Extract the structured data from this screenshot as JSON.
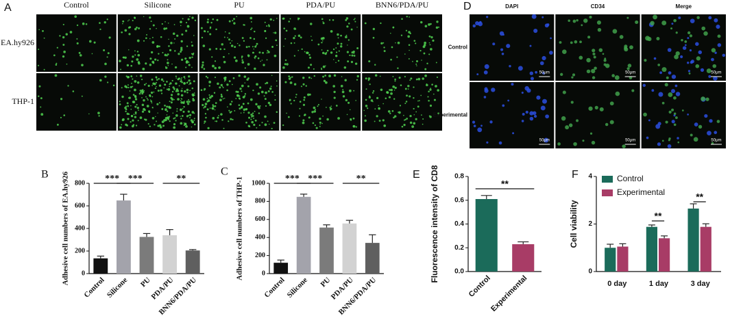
{
  "figure": {
    "panel_a": {
      "label": "A",
      "columns": [
        "Control",
        "Silicone",
        "PU",
        "PDA/PU",
        "BNN6/PDA/PU"
      ],
      "rows": [
        "EA.hy926",
        "THP-1"
      ]
    },
    "panel_d": {
      "label": "D",
      "columns": [
        "DAPI",
        "CD34",
        "Merge"
      ],
      "rows": [
        "Control",
        "Experimental"
      ],
      "scale_bar": "50μm"
    }
  },
  "chart_data": [
    {
      "type": "bar",
      "panel_label": "B",
      "ylabel": "Adhesive cell numbers of EA.hy926",
      "categories": [
        "Control",
        "Silicone",
        "PU",
        "PDA/PU",
        "BNN6/PDA/PU"
      ],
      "values": [
        135,
        648,
        325,
        340,
        205
      ],
      "errors": [
        20,
        55,
        30,
        50,
        8
      ],
      "colors": [
        "#111111",
        "#a3a3ab",
        "#7b7b7b",
        "#d2d2d2",
        "#5f5f5f"
      ],
      "ylim": [
        0,
        800
      ],
      "yticks": [
        0,
        200,
        400,
        600,
        800
      ],
      "annotations": [
        "***",
        "***",
        "**"
      ]
    },
    {
      "type": "bar",
      "panel_label": "C",
      "ylabel": "Adhesive cell numbers of THP-1",
      "categories": [
        "Control",
        "Silicone",
        "PU",
        "PDA/PU",
        "BNN6/PDA/PU"
      ],
      "values": [
        120,
        850,
        510,
        555,
        340
      ],
      "errors": [
        30,
        30,
        30,
        35,
        90
      ],
      "colors": [
        "#111111",
        "#a3a3ab",
        "#7b7b7b",
        "#d2d2d2",
        "#5f5f5f"
      ],
      "ylim": [
        0,
        1000
      ],
      "yticks": [
        0,
        200,
        400,
        600,
        800,
        1000
      ],
      "annotations": [
        "***",
        "***",
        "**"
      ]
    },
    {
      "type": "bar",
      "panel_label": "E",
      "ylabel": "Fluorescence intensity of CD8",
      "categories": [
        "Control",
        "Experimental"
      ],
      "values": [
        0.61,
        0.23
      ],
      "errors": [
        0.03,
        0.02
      ],
      "colors": [
        "#1b6b5a",
        "#a83c66"
      ],
      "ylim": [
        0,
        0.8
      ],
      "yticks": [
        {
          "value": 0,
          "label": "0.0"
        },
        0.2,
        0.4,
        0.6,
        0.8
      ],
      "annotations": [
        "**"
      ]
    },
    {
      "type": "grouped-bar",
      "panel_label": "F",
      "ylabel": "Cell viability",
      "categories": [
        "0 day",
        "1 day",
        "3 day"
      ],
      "series": [
        {
          "name": "Control",
          "color": "#1b6b5a",
          "values": [
            1.0,
            1.88,
            2.65
          ],
          "errors": [
            0.15,
            0.08,
            0.2
          ]
        },
        {
          "name": "Experimental",
          "color": "#a83c66",
          "values": [
            1.05,
            1.4,
            1.88
          ],
          "errors": [
            0.12,
            0.1,
            0.13
          ]
        }
      ],
      "ylim": [
        0,
        4
      ],
      "yticks": [
        0,
        2,
        4
      ],
      "legend": "upper left",
      "annotations": [
        "**",
        "**"
      ]
    }
  ]
}
